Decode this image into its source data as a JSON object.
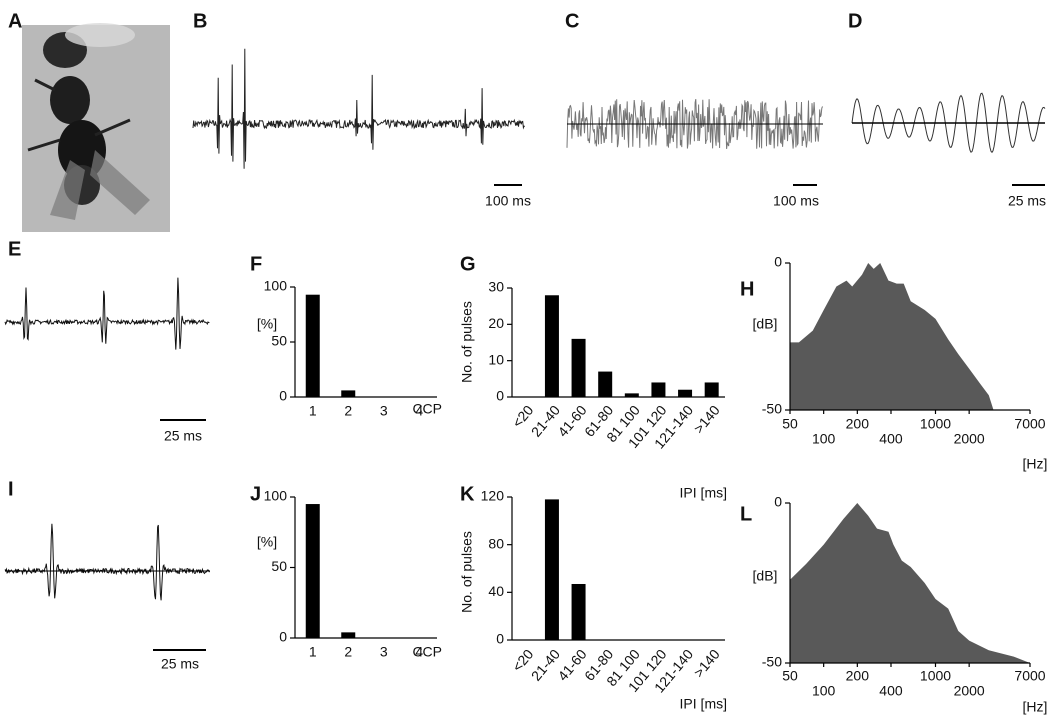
{
  "panel_labels": [
    "A",
    "B",
    "C",
    "D",
    "E",
    "F",
    "G",
    "H",
    "I",
    "J",
    "K",
    "L"
  ],
  "scale_bars": {
    "B": "100 ms",
    "C": "100 ms",
    "D": "25 ms",
    "E": "25 ms",
    "I": "25 ms"
  },
  "chart_data": [
    {
      "type": "bar",
      "ylabel": "[%]",
      "xlabel": "CCP",
      "categories": [
        "1",
        "2",
        "3",
        "4"
      ],
      "values": [
        93,
        6,
        0,
        0
      ],
      "color": "#000000",
      "ylim": [
        0,
        100
      ],
      "yticks": [
        0,
        50,
        100
      ]
    },
    {
      "type": "bar",
      "ylabel": "No. of pulses",
      "xlabel": "IPI [ms]",
      "categories": [
        "<20",
        "21-40",
        "41-60",
        "61-80",
        "81 100",
        "101 120",
        "121-140",
        ">140"
      ],
      "values": [
        0,
        28,
        16,
        7,
        1,
        4,
        2,
        4
      ],
      "color": "#000000",
      "ylim": [
        0,
        30
      ],
      "yticks": [
        0,
        10,
        20,
        30
      ]
    },
    {
      "type": "area",
      "ylabel": "[dB]",
      "xlabel": "[Hz]",
      "xscale": "log",
      "color": "#595959",
      "x": [
        50,
        60,
        80,
        100,
        130,
        160,
        180,
        220,
        250,
        280,
        320,
        380,
        450,
        520,
        600,
        800,
        1000,
        1300,
        1600,
        2000,
        2500,
        3000,
        3300
      ],
      "values": [
        -27,
        -27,
        -23,
        -16,
        -8,
        -6,
        -8,
        -4,
        0,
        -2,
        0,
        -6,
        -7,
        -7,
        -13,
        -16,
        -19,
        -26,
        -31,
        -36,
        -41,
        -45,
        -50
      ],
      "xlim": [
        50,
        7000
      ],
      "xticks": [
        50,
        100,
        200,
        400,
        1000,
        2000,
        7000
      ],
      "ylim": [
        -50,
        0
      ],
      "yticks": [
        -50,
        0
      ]
    },
    {
      "type": "bar",
      "ylabel": "[%]",
      "xlabel": "CCP",
      "categories": [
        "1",
        "2",
        "3",
        "4"
      ],
      "values": [
        95,
        4,
        0,
        0
      ],
      "color": "#000000",
      "ylim": [
        0,
        100
      ],
      "yticks": [
        0,
        50,
        100
      ]
    },
    {
      "type": "bar",
      "ylabel": "No. of pulses",
      "xlabel": "IPI [ms]",
      "categories": [
        "<20",
        "21-40",
        "41-60",
        "61-80",
        "81 100",
        "101 120",
        "121-140",
        ">140"
      ],
      "values": [
        0,
        118,
        47,
        0,
        0,
        0,
        0,
        0
      ],
      "color": "#000000",
      "ylim": [
        0,
        120
      ],
      "yticks": [
        0,
        40,
        80,
        120
      ]
    },
    {
      "type": "area",
      "ylabel": "[dB]",
      "xlabel": "[Hz]",
      "xscale": "log",
      "color": "#595959",
      "x": [
        50,
        70,
        100,
        150,
        200,
        250,
        300,
        380,
        420,
        500,
        600,
        800,
        1000,
        1300,
        1600,
        2000,
        3000,
        5000,
        7000
      ],
      "values": [
        -24,
        -19,
        -13,
        -5,
        0,
        -4,
        -8,
        -9,
        -13,
        -18,
        -20,
        -25,
        -30,
        -33,
        -40,
        -43,
        -46,
        -48,
        -50
      ],
      "xlim": [
        50,
        7000
      ],
      "xticks": [
        50,
        100,
        200,
        400,
        1000,
        2000,
        7000
      ],
      "ylim": [
        -50,
        0
      ],
      "yticks": [
        -50,
        0
      ]
    }
  ]
}
